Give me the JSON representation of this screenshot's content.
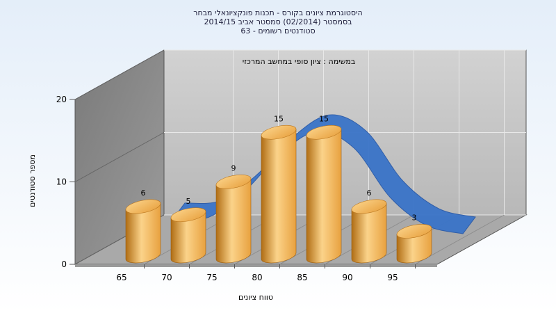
{
  "chart_data": {
    "type": "bar",
    "title": [
      "היסטוגרמת ציונים בקורס - תכנות פונקציונאלי מבחר",
      "בסמסטר (02/2014) סמסטר אביב 2014/15",
      "סטודנטים רשומים - 63"
    ],
    "subtitle": "במשימה : ציון סופי במחשב המרכזי",
    "xlabel": "טווח ציונים",
    "ylabel": "מספר סטודנטים",
    "x_ticks": [
      "65",
      "70",
      "75",
      "80",
      "85",
      "90",
      "95"
    ],
    "y_ticks": [
      "0",
      "10",
      "20"
    ],
    "ylim": [
      0,
      20
    ],
    "values": [
      6,
      5,
      9,
      15,
      15,
      6,
      3
    ],
    "value_labels": [
      "6",
      "5",
      "9",
      "15",
      "15",
      "6",
      "3"
    ],
    "curve": {
      "type": "area-ribbon",
      "color": "#3a74c8",
      "y": [
        3.3,
        3.6,
        6.8,
        11.4,
        14.0,
        12.0,
        6.0,
        2.6,
        1.6
      ]
    },
    "colors": {
      "bar_light": "#fbd38a",
      "bar_mid": "#e8a13f",
      "bar_dark": "#b06d14",
      "back_wall": "#c4c4c4",
      "side_wall": "#8a8a8a",
      "floor": "#a9a9a9"
    },
    "grid": true
  }
}
